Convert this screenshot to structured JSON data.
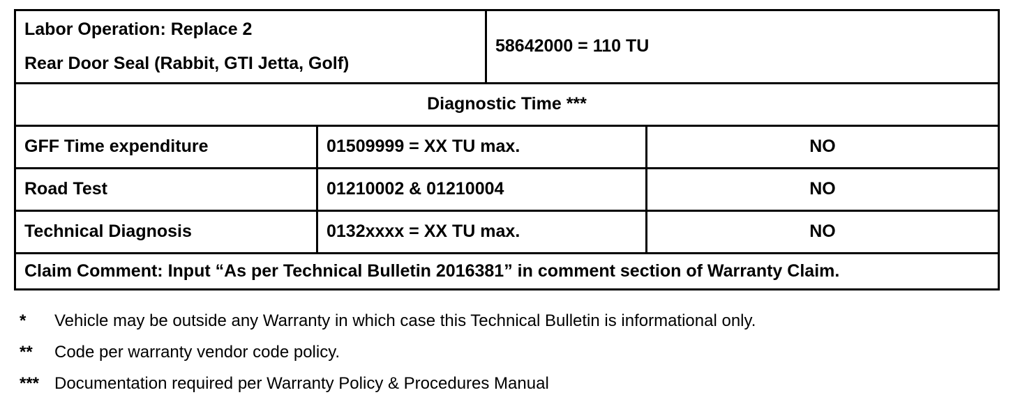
{
  "table": {
    "labor_row": {
      "label_line1": "Labor Operation: Replace 2",
      "label_line2": "Rear Door Seal (Rabbit, GTI Jetta, Golf)",
      "code_value": "58642000 = 110 TU"
    },
    "section_header": "Diagnostic Time ***",
    "diagnostic_rows": [
      {
        "label": "GFF Time expenditure",
        "code": "01509999 = XX TU max.",
        "allowed": "NO"
      },
      {
        "label": "Road Test",
        "code": "01210002 & 01210004",
        "allowed": "NO"
      },
      {
        "label": "Technical Diagnosis",
        "code": "0132xxxx = XX TU max.",
        "allowed": "NO"
      }
    ],
    "claim_comment": "Claim Comment: Input “As per Technical Bulletin 2016381” in comment section of Warranty Claim."
  },
  "footnotes": [
    {
      "marker": "*",
      "text": "Vehicle may be outside any Warranty in which case this Technical Bulletin is informational only."
    },
    {
      "marker": "**",
      "text": "Code per warranty vendor code policy."
    },
    {
      "marker": "***",
      "text": "Documentation required per Warranty Policy & Procedures Manual"
    }
  ]
}
